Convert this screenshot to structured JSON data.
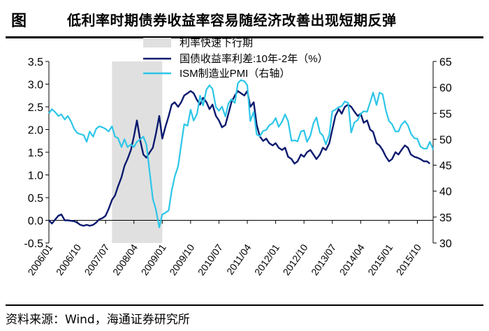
{
  "header": {
    "label": "图",
    "title": "低利率时期债券收益率容易随经济改善出现短期反弹"
  },
  "source": "资料来源：Wind，海通证券研究所",
  "chart_data": {
    "type": "line",
    "title": "低利率时期债券收益率容易随经济改善出现短期反弹",
    "x_tick_labels": [
      "2006/01",
      "2006/10",
      "2007/07",
      "2008/04",
      "2009/01",
      "2009/10",
      "2010/07",
      "2011/04",
      "2012/01",
      "2012/10",
      "2013/07",
      "2014/04",
      "2015/01",
      "2015/10"
    ],
    "x_range": [
      2006.0,
      2016.167
    ],
    "left_axis": {
      "ylim": [
        -0.5,
        3.5
      ],
      "ticks": [
        "-0.5",
        "0.0",
        "0.5",
        "1.0",
        "1.5",
        "2.0",
        "2.5",
        "3.0",
        "3.5"
      ]
    },
    "right_axis": {
      "ylim": [
        30,
        65
      ],
      "ticks": [
        "30",
        "35",
        "40",
        "45",
        "50",
        "55",
        "60",
        "65"
      ]
    },
    "shaded_region": {
      "label": "利率快速下行期",
      "x_start": 2007.67,
      "x_end": 2009.0,
      "color": "#e0e0e0"
    },
    "series": [
      {
        "name": "国债收益率利差:10年-2年（%）",
        "axis": "left",
        "color": "#0a1a6e",
        "points": [
          [
            2006.0,
            0.0
          ],
          [
            2006.08,
            -0.07
          ],
          [
            2006.17,
            0.02
          ],
          [
            2006.25,
            0.1
          ],
          [
            2006.33,
            0.13
          ],
          [
            2006.42,
            0.0
          ],
          [
            2006.5,
            0.0
          ],
          [
            2006.67,
            -0.02
          ],
          [
            2006.75,
            -0.05
          ],
          [
            2006.83,
            -0.1
          ],
          [
            2006.92,
            -0.12
          ],
          [
            2007.0,
            -0.1
          ],
          [
            2007.08,
            -0.12
          ],
          [
            2007.17,
            -0.1
          ],
          [
            2007.25,
            -0.05
          ],
          [
            2007.33,
            0.02
          ],
          [
            2007.42,
            0.05
          ],
          [
            2007.5,
            0.1
          ],
          [
            2007.58,
            0.25
          ],
          [
            2007.67,
            0.45
          ],
          [
            2007.75,
            0.55
          ],
          [
            2007.83,
            0.75
          ],
          [
            2007.92,
            0.95
          ],
          [
            2008.0,
            1.2
          ],
          [
            2008.08,
            1.35
          ],
          [
            2008.17,
            1.55
          ],
          [
            2008.25,
            1.85
          ],
          [
            2008.33,
            2.2
          ],
          [
            2008.42,
            1.75
          ],
          [
            2008.5,
            1.45
          ],
          [
            2008.58,
            1.38
          ],
          [
            2008.67,
            1.5
          ],
          [
            2008.75,
            1.6
          ],
          [
            2008.83,
            1.9
          ],
          [
            2008.92,
            2.3
          ],
          [
            2009.0,
            1.8
          ],
          [
            2009.08,
            2.05
          ],
          [
            2009.17,
            2.3
          ],
          [
            2009.25,
            2.55
          ],
          [
            2009.33,
            2.6
          ],
          [
            2009.42,
            2.5
          ],
          [
            2009.5,
            2.6
          ],
          [
            2009.58,
            2.75
          ],
          [
            2009.67,
            2.8
          ],
          [
            2009.75,
            2.85
          ],
          [
            2009.83,
            2.8
          ],
          [
            2009.92,
            2.65
          ],
          [
            2010.0,
            2.55
          ],
          [
            2010.08,
            2.7
          ],
          [
            2010.17,
            2.6
          ],
          [
            2010.25,
            2.45
          ],
          [
            2010.33,
            2.55
          ],
          [
            2010.42,
            2.3
          ],
          [
            2010.5,
            2.2
          ],
          [
            2010.58,
            2.05
          ],
          [
            2010.67,
            2.1
          ],
          [
            2010.75,
            2.35
          ],
          [
            2010.83,
            2.6
          ],
          [
            2010.92,
            2.75
          ],
          [
            2011.0,
            2.85
          ],
          [
            2011.08,
            2.8
          ],
          [
            2011.17,
            2.75
          ],
          [
            2011.25,
            2.85
          ],
          [
            2011.33,
            2.5
          ],
          [
            2011.42,
            2.6
          ],
          [
            2011.5,
            2.1
          ],
          [
            2011.58,
            1.85
          ],
          [
            2011.67,
            1.75
          ],
          [
            2011.75,
            1.8
          ],
          [
            2011.83,
            1.7
          ],
          [
            2011.92,
            1.65
          ],
          [
            2012.0,
            1.7
          ],
          [
            2012.08,
            1.6
          ],
          [
            2012.17,
            1.55
          ],
          [
            2012.25,
            1.6
          ],
          [
            2012.33,
            1.4
          ],
          [
            2012.42,
            1.35
          ],
          [
            2012.5,
            1.25
          ],
          [
            2012.58,
            1.3
          ],
          [
            2012.67,
            1.45
          ],
          [
            2012.75,
            1.4
          ],
          [
            2012.83,
            1.5
          ],
          [
            2012.92,
            1.55
          ],
          [
            2013.0,
            1.45
          ],
          [
            2013.08,
            1.35
          ],
          [
            2013.17,
            1.45
          ],
          [
            2013.25,
            1.6
          ],
          [
            2013.33,
            1.55
          ],
          [
            2013.42,
            1.7
          ],
          [
            2013.5,
            2.0
          ],
          [
            2013.58,
            2.3
          ],
          [
            2013.67,
            2.45
          ],
          [
            2013.75,
            2.35
          ],
          [
            2013.83,
            2.5
          ],
          [
            2013.92,
            2.55
          ],
          [
            2014.0,
            2.5
          ],
          [
            2014.08,
            2.4
          ],
          [
            2014.17,
            2.3
          ],
          [
            2014.25,
            2.35
          ],
          [
            2014.33,
            2.15
          ],
          [
            2014.42,
            2.2
          ],
          [
            2014.5,
            2.0
          ],
          [
            2014.58,
            1.95
          ],
          [
            2014.67,
            1.7
          ],
          [
            2014.75,
            1.65
          ],
          [
            2014.83,
            1.55
          ],
          [
            2014.92,
            1.4
          ],
          [
            2015.0,
            1.3
          ],
          [
            2015.08,
            1.35
          ],
          [
            2015.17,
            1.5
          ],
          [
            2015.25,
            1.45
          ],
          [
            2015.33,
            1.55
          ],
          [
            2015.42,
            1.65
          ],
          [
            2015.5,
            1.6
          ],
          [
            2015.58,
            1.45
          ],
          [
            2015.67,
            1.4
          ],
          [
            2015.75,
            1.38
          ],
          [
            2015.83,
            1.35
          ],
          [
            2015.92,
            1.3
          ],
          [
            2016.0,
            1.3
          ],
          [
            2016.08,
            1.25
          ]
        ]
      },
      {
        "name": "ISM制造业PMI（右轴）",
        "axis": "right",
        "color": "#2cc6e8",
        "points": [
          [
            2006.0,
            55.0
          ],
          [
            2006.08,
            55.8
          ],
          [
            2006.17,
            55.2
          ],
          [
            2006.25,
            54.5
          ],
          [
            2006.33,
            54.8
          ],
          [
            2006.42,
            53.8
          ],
          [
            2006.5,
            54.5
          ],
          [
            2006.58,
            53.5
          ],
          [
            2006.67,
            52.0
          ],
          [
            2006.75,
            51.2
          ],
          [
            2006.83,
            51.0
          ],
          [
            2006.92,
            50.8
          ],
          [
            2007.0,
            49.5
          ],
          [
            2007.08,
            51.5
          ],
          [
            2007.17,
            50.5
          ],
          [
            2007.25,
            52.0
          ],
          [
            2007.33,
            52.5
          ],
          [
            2007.42,
            52.3
          ],
          [
            2007.5,
            52.0
          ],
          [
            2007.58,
            51.5
          ],
          [
            2007.67,
            52.5
          ],
          [
            2007.75,
            50.5
          ],
          [
            2007.83,
            50.2
          ],
          [
            2007.92,
            48.5
          ],
          [
            2008.0,
            50.0
          ],
          [
            2008.08,
            48.5
          ],
          [
            2008.17,
            49.0
          ],
          [
            2008.25,
            48.5
          ],
          [
            2008.33,
            49.5
          ],
          [
            2008.42,
            50.0
          ],
          [
            2008.5,
            50.5
          ],
          [
            2008.58,
            49.0
          ],
          [
            2008.67,
            43.5
          ],
          [
            2008.75,
            38.5
          ],
          [
            2008.83,
            36.5
          ],
          [
            2008.92,
            33.0
          ],
          [
            2009.0,
            35.5
          ],
          [
            2009.08,
            35.8
          ],
          [
            2009.17,
            36.3
          ],
          [
            2009.25,
            40.1
          ],
          [
            2009.33,
            42.8
          ],
          [
            2009.42,
            44.8
          ],
          [
            2009.5,
            48.9
          ],
          [
            2009.58,
            52.9
          ],
          [
            2009.67,
            52.6
          ],
          [
            2009.75,
            55.7
          ],
          [
            2009.83,
            53.6
          ],
          [
            2009.92,
            54.9
          ],
          [
            2010.0,
            58.4
          ],
          [
            2010.08,
            56.5
          ],
          [
            2010.17,
            59.6
          ],
          [
            2010.25,
            60.4
          ],
          [
            2010.33,
            59.7
          ],
          [
            2010.42,
            56.2
          ],
          [
            2010.5,
            55.5
          ],
          [
            2010.58,
            56.3
          ],
          [
            2010.67,
            54.4
          ],
          [
            2010.75,
            56.9
          ],
          [
            2010.83,
            57.7
          ],
          [
            2010.92,
            57.0
          ],
          [
            2011.0,
            60.8
          ],
          [
            2011.08,
            61.4
          ],
          [
            2011.17,
            61.2
          ],
          [
            2011.25,
            60.4
          ],
          [
            2011.33,
            53.5
          ],
          [
            2011.42,
            55.3
          ],
          [
            2011.5,
            50.9
          ],
          [
            2011.58,
            50.6
          ],
          [
            2011.67,
            51.6
          ],
          [
            2011.75,
            51.8
          ],
          [
            2011.83,
            52.7
          ],
          [
            2011.92,
            53.1
          ],
          [
            2012.0,
            54.1
          ],
          [
            2012.08,
            52.4
          ],
          [
            2012.17,
            53.4
          ],
          [
            2012.25,
            54.8
          ],
          [
            2012.33,
            53.5
          ],
          [
            2012.42,
            49.7
          ],
          [
            2012.5,
            49.8
          ],
          [
            2012.58,
            49.6
          ],
          [
            2012.67,
            51.5
          ],
          [
            2012.75,
            51.7
          ],
          [
            2012.83,
            49.5
          ],
          [
            2012.92,
            50.7
          ],
          [
            2013.0,
            53.1
          ],
          [
            2013.08,
            54.2
          ],
          [
            2013.17,
            51.3
          ],
          [
            2013.25,
            50.7
          ],
          [
            2013.33,
            49.0
          ],
          [
            2013.42,
            50.9
          ],
          [
            2013.5,
            55.4
          ],
          [
            2013.58,
            55.7
          ],
          [
            2013.67,
            56.2
          ],
          [
            2013.75,
            56.4
          ],
          [
            2013.83,
            57.3
          ],
          [
            2013.92,
            57.0
          ],
          [
            2014.0,
            51.3
          ],
          [
            2014.08,
            53.2
          ],
          [
            2014.17,
            53.7
          ],
          [
            2014.25,
            54.9
          ],
          [
            2014.33,
            55.4
          ],
          [
            2014.42,
            55.3
          ],
          [
            2014.5,
            57.1
          ],
          [
            2014.58,
            59.0
          ],
          [
            2014.67,
            56.6
          ],
          [
            2014.75,
            59.0
          ],
          [
            2014.83,
            58.7
          ],
          [
            2014.92,
            55.5
          ],
          [
            2015.0,
            53.5
          ],
          [
            2015.08,
            52.9
          ],
          [
            2015.17,
            51.5
          ],
          [
            2015.25,
            51.5
          ],
          [
            2015.33,
            52.8
          ],
          [
            2015.42,
            53.5
          ],
          [
            2015.5,
            52.7
          ],
          [
            2015.58,
            51.1
          ],
          [
            2015.67,
            50.2
          ],
          [
            2015.75,
            50.1
          ],
          [
            2015.83,
            48.6
          ],
          [
            2015.92,
            48.2
          ],
          [
            2016.0,
            48.2
          ],
          [
            2016.08,
            49.5
          ],
          [
            2016.17,
            48.0
          ]
        ]
      }
    ]
  }
}
